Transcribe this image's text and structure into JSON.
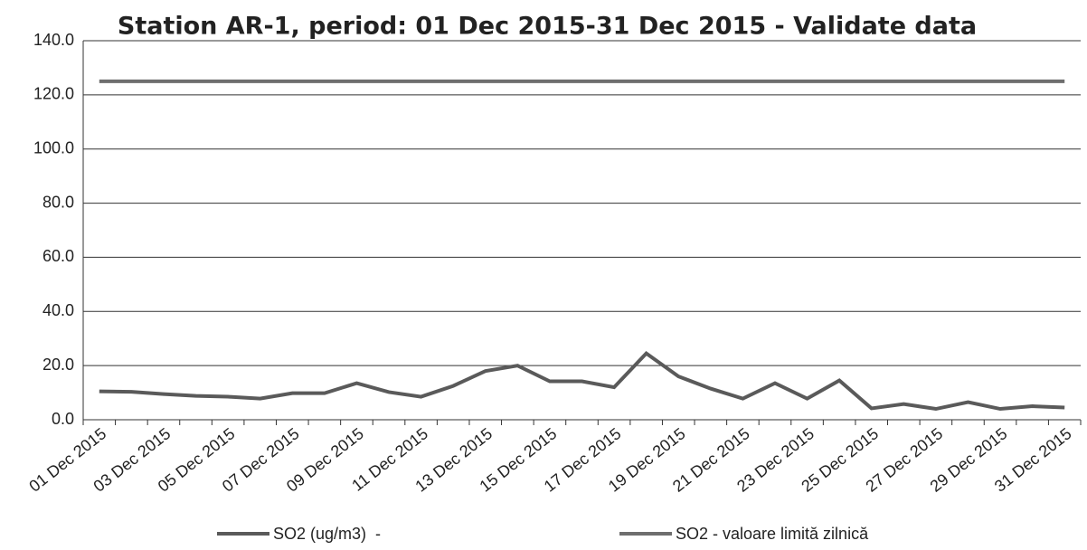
{
  "chart_data": {
    "type": "line",
    "title": "Station AR-1, period: 01 Dec 2015-31 Dec 2015 - Validate data",
    "categories": [
      "01 Dec 2015",
      null,
      "03 Dec 2015",
      null,
      "05 Dec 2015",
      null,
      "07 Dec 2015",
      null,
      "09 Dec 2015",
      null,
      "11 Dec 2015",
      null,
      "13 Dec 2015",
      null,
      "15 Dec 2015",
      null,
      "17 Dec 2015",
      null,
      "19 Dec 2015",
      null,
      "21 Dec 2015",
      null,
      "23 Dec 2015",
      null,
      "25 Dec 2015",
      null,
      "27 Dec 2015",
      null,
      "29 Dec 2015",
      null,
      "31 Dec 2015"
    ],
    "series": [
      {
        "name": "SO2 (ug/m3)  -",
        "color": "#5a5a5a",
        "values": [
          10.5,
          10.3,
          9.5,
          8.8,
          8.5,
          7.8,
          9.8,
          9.8,
          13.5,
          10.2,
          8.5,
          12.5,
          18,
          20,
          14.2,
          14.2,
          12,
          24.5,
          16,
          11.5,
          7.8,
          13.5,
          7.8,
          14.5,
          4.2,
          5.8,
          4,
          6.5,
          4,
          5,
          4.5
        ]
      },
      {
        "name": "SO2 - valoare limită zilnică",
        "color": "#6e6e6e",
        "values": [
          125,
          125,
          125,
          125,
          125,
          125,
          125,
          125,
          125,
          125,
          125,
          125,
          125,
          125,
          125,
          125,
          125,
          125,
          125,
          125,
          125,
          125,
          125,
          125,
          125,
          125,
          125,
          125,
          125,
          125,
          125
        ]
      }
    ],
    "ylim": [
      0,
      140
    ],
    "yticks": [
      {
        "value": 0,
        "label": "0.0"
      },
      {
        "value": 20,
        "label": "20.0"
      },
      {
        "value": 40,
        "label": "40.0"
      },
      {
        "value": 60,
        "label": "60.0"
      },
      {
        "value": 80,
        "label": "80.0"
      },
      {
        "value": 100,
        "label": "100.0"
      },
      {
        "value": 120,
        "label": "120.0"
      },
      {
        "value": 140,
        "label": "140.0"
      }
    ],
    "grid": true
  }
}
